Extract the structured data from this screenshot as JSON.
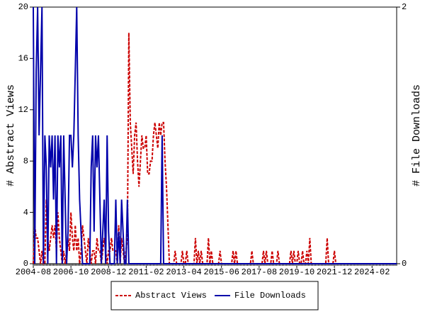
{
  "chart_data": {
    "type": "line",
    "categories": [
      "2004-08",
      null,
      null,
      null,
      null,
      null,
      null,
      null,
      null,
      null,
      null,
      null,
      null,
      null,
      null,
      null,
      null,
      null,
      null,
      null,
      null,
      null,
      null,
      null,
      null,
      null,
      "2006-10",
      null,
      null,
      null,
      null,
      null,
      null,
      null,
      null,
      null,
      null,
      null,
      null,
      null,
      null,
      null,
      null,
      null,
      null,
      null,
      null,
      null,
      null,
      null,
      null,
      null,
      "2008-12",
      null,
      null,
      null,
      null,
      null,
      null,
      null,
      null,
      null,
      null,
      null,
      null,
      null,
      null,
      null,
      null,
      null,
      null,
      null,
      null,
      null,
      null,
      null,
      null,
      null,
      "2011-02",
      null,
      null,
      null,
      null,
      null,
      null,
      null,
      null,
      null,
      null,
      null,
      null,
      null,
      null,
      null,
      null,
      null,
      null,
      null,
      null,
      null,
      null,
      null,
      null,
      null,
      "2013-04",
      null,
      null,
      null,
      null,
      null,
      null,
      null,
      null,
      null,
      null,
      null,
      null,
      null,
      null,
      null,
      null,
      null,
      null,
      null,
      null,
      null,
      null,
      null,
      null,
      null,
      "2015-06",
      null,
      null,
      null,
      null,
      null,
      null,
      null,
      null,
      null,
      null,
      null,
      null,
      null,
      null,
      null,
      null,
      null,
      null,
      null,
      null,
      null,
      null,
      null,
      null,
      null,
      "2017-08",
      null,
      null,
      null,
      null,
      null,
      null,
      null,
      null,
      null,
      null,
      null,
      null,
      null,
      null,
      null,
      null,
      null,
      null,
      null,
      null,
      null,
      null,
      null,
      null,
      null,
      "2019-10",
      null,
      null,
      null,
      null,
      null,
      null,
      null,
      null,
      null,
      null,
      null,
      null,
      null,
      null,
      null,
      null,
      null,
      null,
      null,
      null,
      null,
      null,
      null,
      null,
      null,
      "2021-12",
      null,
      null,
      null,
      null,
      null,
      null,
      null,
      null,
      null,
      null,
      null,
      null,
      null,
      null,
      null,
      null,
      null,
      null,
      null,
      null,
      null,
      null,
      null,
      null,
      null,
      "2024-02",
      null,
      null,
      null,
      null,
      null,
      null,
      null,
      null,
      null,
      null,
      null,
      null,
      null,
      null,
      null,
      null,
      null
    ],
    "series": [
      {
        "name": "Abstract Views",
        "color": "#cc0000",
        "dashed": true,
        "axis": "y",
        "values": [
          0,
          3,
          2,
          2,
          1,
          0,
          1,
          0,
          0,
          5,
          2,
          1,
          2,
          3,
          2,
          3,
          1,
          4,
          2,
          1,
          0,
          1,
          0,
          1,
          2,
          1,
          4,
          2,
          1,
          3,
          1,
          2,
          0,
          1,
          3,
          2,
          1,
          0,
          2,
          1,
          0,
          1,
          1,
          0,
          2,
          1,
          1,
          0,
          1,
          2,
          1,
          0,
          1,
          1,
          2,
          1,
          1,
          1,
          0,
          3,
          0,
          2,
          1,
          0,
          1,
          2,
          18,
          11,
          9,
          7,
          10,
          11,
          8,
          6,
          8,
          10,
          9,
          9,
          10,
          7,
          7,
          8,
          8,
          10,
          11,
          10,
          9,
          11,
          10,
          11,
          11,
          8,
          6,
          3,
          0,
          0,
          0,
          0,
          1,
          0,
          0,
          0,
          0,
          1,
          0,
          0,
          1,
          0,
          0,
          0,
          0,
          0,
          2,
          0,
          1,
          0,
          1,
          0,
          0,
          0,
          0,
          2,
          0,
          1,
          0,
          0,
          0,
          0,
          0,
          1,
          0,
          0,
          0,
          0,
          0,
          0,
          0,
          0,
          1,
          0,
          1,
          0,
          0,
          0,
          0,
          0,
          0,
          0,
          0,
          0,
          0,
          1,
          0,
          0,
          0,
          0,
          0,
          0,
          0,
          1,
          0,
          1,
          0,
          0,
          0,
          1,
          0,
          0,
          0,
          1,
          0,
          0,
          0,
          0,
          0,
          0,
          0,
          0,
          1,
          0,
          1,
          0,
          0,
          1,
          0,
          0,
          1,
          0,
          0,
          1,
          0,
          2,
          0,
          0,
          0,
          0,
          0,
          0,
          0,
          0,
          0,
          0,
          0,
          2,
          0,
          0,
          0,
          0,
          1,
          0,
          0,
          0,
          0,
          0,
          0,
          0,
          0,
          0,
          0,
          0,
          0,
          0,
          0,
          0,
          0,
          0,
          0,
          0,
          0,
          0,
          0,
          0,
          0,
          0,
          0,
          0,
          0,
          0,
          0,
          0,
          0,
          0,
          0,
          0,
          0,
          0,
          0,
          0,
          0,
          0,
          0,
          0
        ]
      },
      {
        "name": "File Downloads",
        "color": "#0000aa",
        "dashed": false,
        "axis": "y2",
        "values": [
          2,
          0,
          1.5,
          2,
          1,
          1.5,
          2,
          0,
          1,
          0.75,
          0,
          1,
          0.75,
          1,
          0.5,
          1,
          0,
          1,
          0.75,
          1,
          0,
          1,
          0.5,
          0,
          0.25,
          1,
          1,
          0.75,
          1,
          1.5,
          2,
          1,
          0.5,
          0.25,
          0,
          0,
          0,
          0,
          0,
          0,
          0.75,
          1,
          0.25,
          1,
          0.75,
          1,
          0.5,
          0,
          0.25,
          0.5,
          0,
          1,
          0.25,
          0,
          0,
          0,
          0,
          0.5,
          0,
          0.25,
          0,
          0.5,
          0.25,
          0,
          0,
          0.5,
          0,
          0,
          0,
          0,
          0,
          0,
          0,
          0,
          0,
          0,
          0,
          0,
          0,
          0,
          0,
          0,
          0,
          0,
          0,
          0,
          0,
          0,
          0,
          1,
          0,
          0,
          0,
          0,
          0,
          0,
          0,
          0,
          0,
          0,
          0,
          0,
          0,
          0,
          0,
          0,
          0,
          0,
          0,
          0,
          0,
          0,
          0,
          0,
          0,
          0,
          0,
          0,
          0,
          0,
          0,
          0,
          0,
          0,
          0,
          0,
          0,
          0,
          0,
          0,
          0,
          0,
          0,
          0,
          0,
          0,
          0,
          0,
          0,
          0,
          0,
          0,
          0,
          0,
          0,
          0,
          0,
          0,
          0,
          0,
          0,
          0,
          0,
          0,
          0,
          0,
          0,
          0,
          0,
          0,
          0,
          0,
          0,
          0,
          0,
          0,
          0,
          0,
          0,
          0,
          0,
          0,
          0,
          0,
          0,
          0,
          0,
          0,
          0,
          0,
          0,
          0,
          0,
          0,
          0,
          0,
          0,
          0,
          0,
          0,
          0,
          0,
          0,
          0,
          0,
          0,
          0,
          0,
          0,
          0,
          0,
          0,
          0,
          0,
          0,
          0,
          0,
          0,
          0,
          0,
          0,
          0,
          0,
          0,
          0,
          0,
          0,
          0,
          0,
          0,
          0,
          0,
          0,
          0,
          0,
          0,
          0,
          0,
          0,
          0,
          0,
          0,
          0,
          0,
          0,
          0,
          0,
          0,
          0,
          0,
          0,
          0,
          0,
          0,
          0,
          0,
          0,
          0,
          0,
          0,
          0,
          0
        ]
      }
    ],
    "ylabel": "# Abstract Views",
    "y2label": "# File Downloads",
    "ylim": [
      0,
      20
    ],
    "yticks": [
      0,
      4,
      8,
      12,
      16,
      20
    ],
    "y2lim": [
      0,
      2
    ],
    "y2ticks": [
      0,
      2
    ],
    "legend": "bottom"
  }
}
